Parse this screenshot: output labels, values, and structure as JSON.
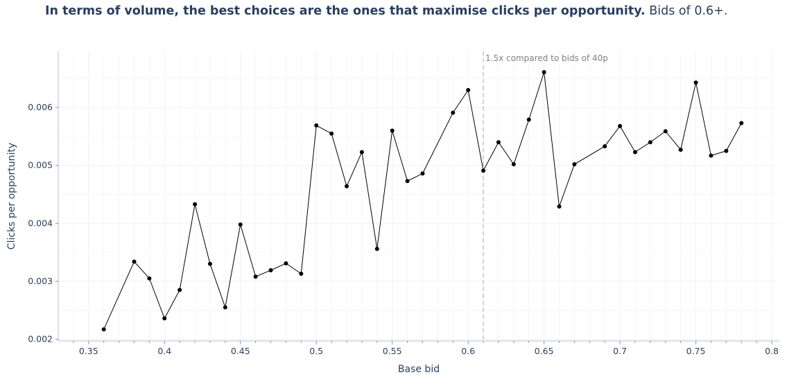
{
  "headline": {
    "bold": "In terms of volume, the best choices are the ones that maximise clicks per opportunity.",
    "normal": " Bids of 0.6+."
  },
  "chart_data": {
    "type": "line",
    "title": "In terms of volume, the best choices are the ones that maximise clicks per opportunity. Bids of 0.6+.",
    "xlabel": "Base bid",
    "ylabel": "Clicks per opportunity",
    "xlim": [
      0.33,
      0.805
    ],
    "ylim": [
      0.00197,
      0.00697
    ],
    "x_ticks": [
      0.35,
      0.4,
      0.45,
      0.5,
      0.55,
      0.6,
      0.65,
      0.7,
      0.75,
      0.8
    ],
    "x_tick_labels": [
      "0.35",
      "0.4",
      "0.45",
      "0.5",
      "0.55",
      "0.6",
      "0.65",
      "0.7",
      "0.75",
      "0.8"
    ],
    "y_ticks": [
      0.002,
      0.003,
      0.004,
      0.005,
      0.006
    ],
    "y_tick_labels": [
      "0.002",
      "0.003",
      "0.004",
      "0.005",
      "0.006"
    ],
    "grid": true,
    "legend": false,
    "line_color": "#000000",
    "vline": {
      "x": 0.61,
      "style": "dashed",
      "color": "#aaaaaa",
      "label": "1.5x compared to bids of 40p"
    },
    "series": [
      {
        "x": [
          0.36,
          0.38,
          0.39,
          0.4,
          0.41,
          0.42,
          0.43,
          0.44,
          0.45,
          0.46,
          0.47,
          0.48,
          0.49,
          0.5,
          0.51,
          0.52,
          0.53,
          0.54,
          0.55,
          0.56,
          0.57,
          0.59,
          0.6,
          0.61,
          0.62,
          0.63,
          0.64,
          0.65,
          0.66,
          0.67,
          0.69,
          0.7,
          0.71,
          0.72,
          0.73,
          0.74,
          0.75,
          0.76,
          0.77,
          0.78
        ],
        "y": [
          0.00217,
          0.00334,
          0.00305,
          0.00236,
          0.00285,
          0.00433,
          0.0033,
          0.00255,
          0.00398,
          0.00308,
          0.00319,
          0.00331,
          0.00313,
          0.00569,
          0.00555,
          0.00464,
          0.00523,
          0.00356,
          0.0056,
          0.00473,
          0.00486,
          0.00591,
          0.0063,
          0.00491,
          0.0054,
          0.00502,
          0.00579,
          0.00661,
          0.00429,
          0.00502,
          0.00533,
          0.00568,
          0.00523,
          0.0054,
          0.00559,
          0.00527,
          0.00643,
          0.00517,
          0.00525,
          0.00573
        ]
      }
    ]
  }
}
